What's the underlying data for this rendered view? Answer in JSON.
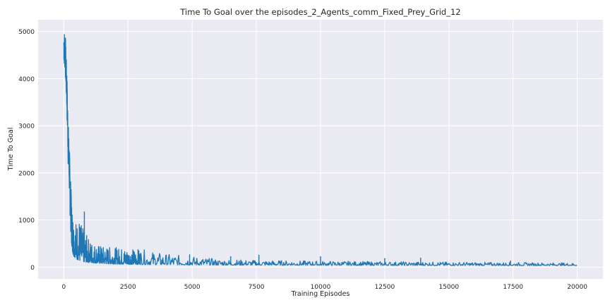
{
  "chart_data": {
    "type": "line",
    "title": "Time To Goal over the episodes_2_Agents_comm_Fixed_Prey_Grid_12",
    "xlabel": "Training Episodes",
    "ylabel": "Time To Goal",
    "xlim": [
      -1000,
      21000
    ],
    "ylim": [
      -250,
      5250
    ],
    "xticks": [
      0,
      2500,
      5000,
      7500,
      10000,
      12500,
      15000,
      17500,
      20000
    ],
    "yticks": [
      0,
      1000,
      2000,
      3000,
      4000,
      5000
    ],
    "grid": true,
    "series": [
      {
        "color": "#1f77b4",
        "envelope": {
          "x": [
            0,
            30,
            60,
            90,
            120,
            150,
            180,
            210,
            240,
            270,
            300,
            350,
            400,
            500,
            600,
            700,
            800,
            1000,
            1250,
            1500,
            2000,
            2500,
            3000,
            3500,
            4000,
            5000,
            6000,
            7500,
            10000,
            12500,
            15000,
            17500,
            20000
          ],
          "upper": [
            5000,
            5000,
            5000,
            4500,
            4200,
            3500,
            3000,
            2700,
            2200,
            1800,
            1500,
            1250,
            1100,
            1000,
            1100,
            900,
            750,
            600,
            500,
            450,
            420,
            400,
            380,
            330,
            280,
            230,
            170,
            150,
            130,
            120,
            110,
            100,
            90
          ],
          "lower": [
            4200,
            4100,
            3900,
            3400,
            3000,
            2300,
            1800,
            1300,
            1000,
            700,
            500,
            300,
            220,
            170,
            140,
            120,
            110,
            95,
            85,
            75,
            65,
            60,
            55,
            50,
            48,
            45,
            42,
            40,
            38,
            36,
            35,
            34,
            33
          ]
        },
        "spikes": [
          {
            "x": 800,
            "y": 1180
          },
          {
            "x": 4900,
            "y": 270
          },
          {
            "x": 6500,
            "y": 230
          },
          {
            "x": 7600,
            "y": 260
          },
          {
            "x": 10000,
            "y": 230
          },
          {
            "x": 12500,
            "y": 190
          },
          {
            "x": 13900,
            "y": 200
          },
          {
            "x": 17400,
            "y": 140
          }
        ]
      }
    ]
  }
}
